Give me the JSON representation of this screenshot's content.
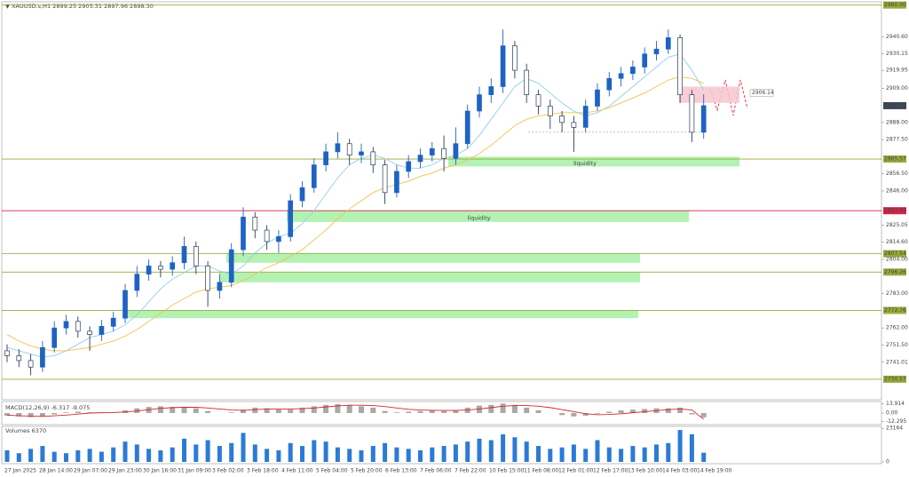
{
  "chart_data": [
    {
      "type": "candlestick",
      "title": "▼ XAUUSD.s,H1  2899.25 2905.31 2897.96 2898.30",
      "xlabels": [
        "27 Jan 2025",
        "28 Jan 14:00",
        "29 Jan 07:00",
        "29 Jan 23:00",
        "30 Jan 16:00",
        "31 Jan 09:00",
        "3 Feb 02:00",
        "3 Feb 18:00",
        "4 Feb 11:00",
        "5 Feb 04:00",
        "5 Feb 20:00",
        "6 Feb 13:00",
        "7 Feb 06:00",
        "7 Feb 22:00",
        "10 Feb 15:00",
        "11 Feb 08:00",
        "12 Feb 01:00",
        "12 Feb 17:00",
        "13 Feb 10:00",
        "14 Feb 03:00",
        "14 Feb 19:00"
      ],
      "open": [
        2748,
        2745,
        2742,
        2738,
        2750,
        2762,
        2766,
        2760,
        2758,
        2763,
        2768,
        2785,
        2795,
        2800,
        2798,
        2802,
        2812,
        2800,
        2785,
        2790,
        2810,
        2830,
        2822,
        2815,
        2818,
        2840,
        2848,
        2862,
        2870,
        2875,
        2868,
        2870,
        2862,
        2845,
        2858,
        2864,
        2868,
        2872,
        2866,
        2875,
        2895,
        2905,
        2910,
        2935,
        2920,
        2905,
        2898,
        2892,
        2888,
        2885,
        2898,
        2908,
        2915,
        2918,
        2922,
        2930,
        2933,
        2940,
        2905,
        2882
      ],
      "high": [
        2752,
        2749,
        2746,
        2754,
        2766,
        2770,
        2769,
        2763,
        2767,
        2772,
        2789,
        2800,
        2804,
        2803,
        2806,
        2818,
        2815,
        2803,
        2795,
        2814,
        2836,
        2833,
        2825,
        2822,
        2844,
        2852,
        2866,
        2875,
        2882,
        2878,
        2875,
        2873,
        2865,
        2862,
        2868,
        2872,
        2876,
        2880,
        2885,
        2899,
        2910,
        2915,
        2945,
        2938,
        2924,
        2908,
        2902,
        2895,
        2892,
        2902,
        2912,
        2919,
        2922,
        2926,
        2934,
        2938,
        2945,
        2942,
        2908,
        2905.31
      ],
      "low": [
        2741,
        2738,
        2733,
        2735,
        2747,
        2758,
        2756,
        2748,
        2754,
        2760,
        2765,
        2781,
        2791,
        2793,
        2794,
        2798,
        2795,
        2775,
        2780,
        2787,
        2806,
        2817,
        2810,
        2808,
        2815,
        2836,
        2845,
        2858,
        2866,
        2862,
        2863,
        2857,
        2838,
        2842,
        2854,
        2860,
        2864,
        2858,
        2862,
        2872,
        2891,
        2900,
        2906,
        2915,
        2900,
        2893,
        2884,
        2882,
        2870,
        2882,
        2895,
        2904,
        2910,
        2914,
        2918,
        2926,
        2930,
        2900,
        2876,
        2878
      ],
      "close": [
        2745,
        2742,
        2738,
        2750,
        2762,
        2766,
        2760,
        2758,
        2763,
        2768,
        2785,
        2795,
        2800,
        2798,
        2802,
        2812,
        2800,
        2785,
        2790,
        2810,
        2830,
        2822,
        2815,
        2818,
        2840,
        2848,
        2862,
        2870,
        2875,
        2868,
        2870,
        2862,
        2845,
        2858,
        2864,
        2868,
        2872,
        2866,
        2875,
        2895,
        2905,
        2910,
        2935,
        2920,
        2905,
        2898,
        2892,
        2888,
        2885,
        2898,
        2908,
        2915,
        2918,
        2922,
        2930,
        2933,
        2940,
        2905,
        2882,
        2898.3
      ],
      "colors": {
        "up": "#1e63c4",
        "down": "#2b3a55"
      },
      "overlays": [
        {
          "color": "#8fd0ea",
          "values": [
            2750,
            2748,
            2746,
            2744,
            2745,
            2748,
            2752,
            2756,
            2758,
            2760,
            2764,
            2770,
            2778,
            2786,
            2792,
            2796,
            2800,
            2800,
            2797,
            2795,
            2800,
            2808,
            2814,
            2818,
            2820,
            2826,
            2834,
            2844,
            2854,
            2862,
            2866,
            2868,
            2866,
            2862,
            2860,
            2860,
            2862,
            2866,
            2868,
            2872,
            2880,
            2890,
            2900,
            2910,
            2915,
            2912,
            2906,
            2900,
            2895,
            2892,
            2894,
            2898,
            2904,
            2910,
            2916,
            2922,
            2928,
            2930,
            2920,
            2908
          ]
        },
        {
          "color": "#f2c14e",
          "values": [
            2758,
            2754,
            2751,
            2749,
            2748,
            2748,
            2749,
            2750,
            2752,
            2754,
            2757,
            2761,
            2766,
            2771,
            2776,
            2780,
            2784,
            2786,
            2787,
            2788,
            2791,
            2795,
            2799,
            2802,
            2806,
            2810,
            2816,
            2822,
            2829,
            2835,
            2840,
            2845,
            2848,
            2850,
            2852,
            2855,
            2857,
            2860,
            2862,
            2865,
            2869,
            2874,
            2880,
            2886,
            2890,
            2892,
            2893,
            2894,
            2894,
            2894,
            2895,
            2897,
            2900,
            2903,
            2906,
            2910,
            2914,
            2916,
            2915,
            2912
          ]
        }
      ],
      "ylim": [
        2718,
        2962
      ],
      "yticks": [
        {
          "value": 2940.6,
          "label": "2940.60"
        },
        2930.15,
        2919.95,
        {
          "value": 2909,
          "label": "2909.00"
        },
        {
          "value": 2888,
          "label": "2888.00"
        },
        {
          "value": 2877.5,
          "label": "2877.50"
        },
        {
          "value": 2856.5,
          "label": "2856.50"
        },
        {
          "value": 2846,
          "label": "2846.00"
        },
        2825.05,
        {
          "value": 2814.6,
          "label": "2814.60"
        },
        {
          "value": 2804,
          "label": "2804.00"
        },
        {
          "value": 2783,
          "label": "2783.00"
        },
        {
          "value": 2762,
          "label": "2762.00"
        },
        {
          "value": 2751.5,
          "label": "2751.50"
        },
        2741.01
      ],
      "levels": [
        {
          "value": 2960,
          "label": "2960.00",
          "color": "#9aa93a"
        },
        {
          "value": 2865.57,
          "label": "2865.57",
          "color": "#9aa93a"
        },
        {
          "value": 2833.9,
          "label": "2833.90",
          "color": "#d3254a"
        },
        {
          "value": 2807.54,
          "label": "2807.54",
          "color": "#9aa93a"
        },
        {
          "value": 2796.26,
          "label": "2796.26",
          "color": "#9aa93a"
        },
        {
          "value": 2772.76,
          "label": "2772.76",
          "color": "#9aa93a"
        },
        {
          "value": 2730.57,
          "label": "2730.57",
          "color": "#9aa93a"
        }
      ],
      "current": {
        "value": 2898.3,
        "label": "2898.30"
      },
      "zones": [
        {
          "low": 2861,
          "high": 2867,
          "label": "liquidity",
          "color": "#a6f0a6"
        },
        {
          "low": 2827,
          "high": 2834,
          "label": "liquidity",
          "color": "#a6f0a6"
        },
        {
          "low": 2802,
          "high": 2808,
          "color": "#a6f0a6"
        },
        {
          "low": 2790,
          "high": 2796,
          "color": "#a6f0a6"
        },
        {
          "low": 2768,
          "high": 2773,
          "color": "#a6f0a6"
        },
        {
          "low": 2900,
          "high": 2910,
          "color": "#f7c6cf"
        }
      ],
      "support": 2882,
      "annotation": {
        "value": 2906.14,
        "label": "2906.14"
      }
    },
    {
      "type": "macd",
      "title": "MACD(12,26,9) -6.317 -9.075",
      "histogram": {
        "color": "#a8a8a8",
        "values": [
          -4,
          -5,
          -6,
          -5,
          -2,
          1,
          2,
          1,
          0,
          1,
          4,
          7,
          9,
          10,
          9,
          9,
          7,
          3,
          0,
          1,
          5,
          8,
          7,
          5,
          5,
          8,
          10,
          12,
          13,
          12,
          10,
          8,
          3,
          1,
          2,
          3,
          4,
          3,
          4,
          8,
          11,
          12,
          14,
          12,
          8,
          4,
          0,
          -3,
          -5,
          -4,
          -1,
          2,
          4,
          5,
          6,
          7,
          7,
          8,
          -2,
          -6.317
        ]
      },
      "signal": {
        "color": "#d0262d",
        "values": [
          -3,
          -4,
          -4.5,
          -5,
          -4,
          -3,
          -1.5,
          0,
          0.5,
          0.8,
          1.5,
          3,
          5,
          7,
          8,
          8.5,
          8.5,
          7.5,
          6,
          4.5,
          4,
          5,
          6,
          6,
          6,
          6.5,
          7.5,
          9,
          10.5,
          11.5,
          11.5,
          11,
          9.5,
          7.5,
          5.5,
          4.5,
          4,
          3.8,
          3.8,
          4.5,
          6,
          8,
          10,
          11,
          11,
          10,
          8,
          5,
          2,
          -1,
          -2.5,
          -2,
          -1,
          0.5,
          2,
          3.5,
          5,
          6,
          4.5,
          -9.075
        ]
      },
      "ylim": [
        -17,
        17
      ],
      "yticks": [
        13.914,
        {
          "value": 0,
          "label": "0.00"
        },
        -12.295
      ]
    },
    {
      "type": "bar",
      "title": "Volumes 6370",
      "color": "#2b7bd6",
      "values": [
        8000,
        6000,
        9000,
        11000,
        7000,
        6000,
        8000,
        9000,
        7000,
        10000,
        14000,
        12000,
        9000,
        8000,
        10000,
        16000,
        12000,
        15000,
        11000,
        13000,
        20000,
        12000,
        9000,
        8000,
        13000,
        11000,
        15000,
        14000,
        10000,
        9000,
        8000,
        11000,
        13000,
        10000,
        9000,
        8000,
        10000,
        11000,
        12000,
        14000,
        16000,
        15000,
        19000,
        17000,
        14000,
        11000,
        9000,
        10000,
        12000,
        9000,
        15000,
        10000,
        9000,
        11000,
        10000,
        12000,
        13000,
        22000,
        19000,
        6370
      ],
      "ylim": [
        0,
        24500
      ],
      "yticks": [
        23164,
        0
      ]
    }
  ]
}
